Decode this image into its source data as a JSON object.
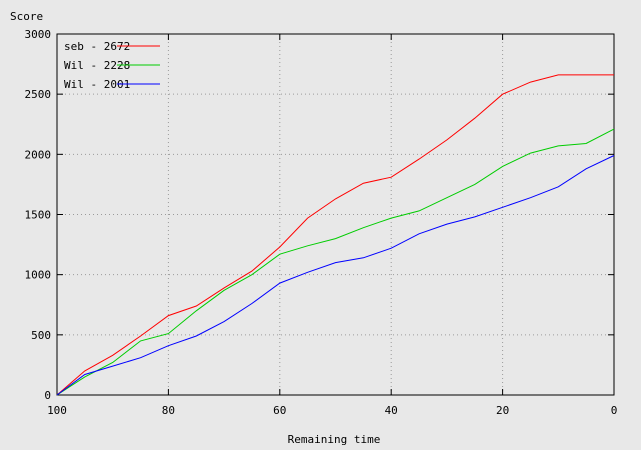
{
  "chart_data": {
    "type": "line",
    "xlabel": "Remaining time",
    "ylabel": "Score",
    "xlim": [
      100,
      0
    ],
    "ylim": [
      0,
      3000
    ],
    "xticks": [
      100,
      80,
      60,
      40,
      20,
      0
    ],
    "yticks": [
      0,
      500,
      1000,
      1500,
      2000,
      2500,
      3000
    ],
    "grid": true,
    "legend_position": "top-left",
    "series": [
      {
        "name": "seb - 2672",
        "color": "#ff0000",
        "x": [
          100,
          95,
          90,
          85,
          80,
          75,
          70,
          65,
          60,
          55,
          50,
          45,
          40,
          35,
          30,
          25,
          20,
          15,
          10,
          5,
          0
        ],
        "y": [
          0,
          200,
          330,
          490,
          660,
          740,
          890,
          1030,
          1230,
          1470,
          1630,
          1760,
          1810,
          1960,
          2120,
          2300,
          2500,
          2600,
          2660,
          2660,
          2660
        ]
      },
      {
        "name": "Wil - 2228",
        "color": "#00cc00",
        "x": [
          100,
          95,
          90,
          85,
          80,
          75,
          70,
          65,
          60,
          55,
          50,
          45,
          40,
          35,
          30,
          25,
          20,
          15,
          10,
          5,
          0
        ],
        "y": [
          0,
          150,
          270,
          450,
          510,
          700,
          870,
          1000,
          1170,
          1240,
          1300,
          1390,
          1470,
          1530,
          1640,
          1750,
          1900,
          2010,
          2070,
          2090,
          2210
        ]
      },
      {
        "name": "Wil - 2001",
        "color": "#0000ff",
        "x": [
          100,
          95,
          90,
          85,
          80,
          75,
          70,
          65,
          60,
          55,
          50,
          45,
          40,
          35,
          30,
          25,
          20,
          15,
          10,
          5,
          0
        ],
        "y": [
          0,
          170,
          240,
          310,
          410,
          490,
          610,
          760,
          930,
          1020,
          1100,
          1140,
          1220,
          1340,
          1420,
          1480,
          1560,
          1640,
          1730,
          1880,
          1990
        ]
      }
    ]
  }
}
